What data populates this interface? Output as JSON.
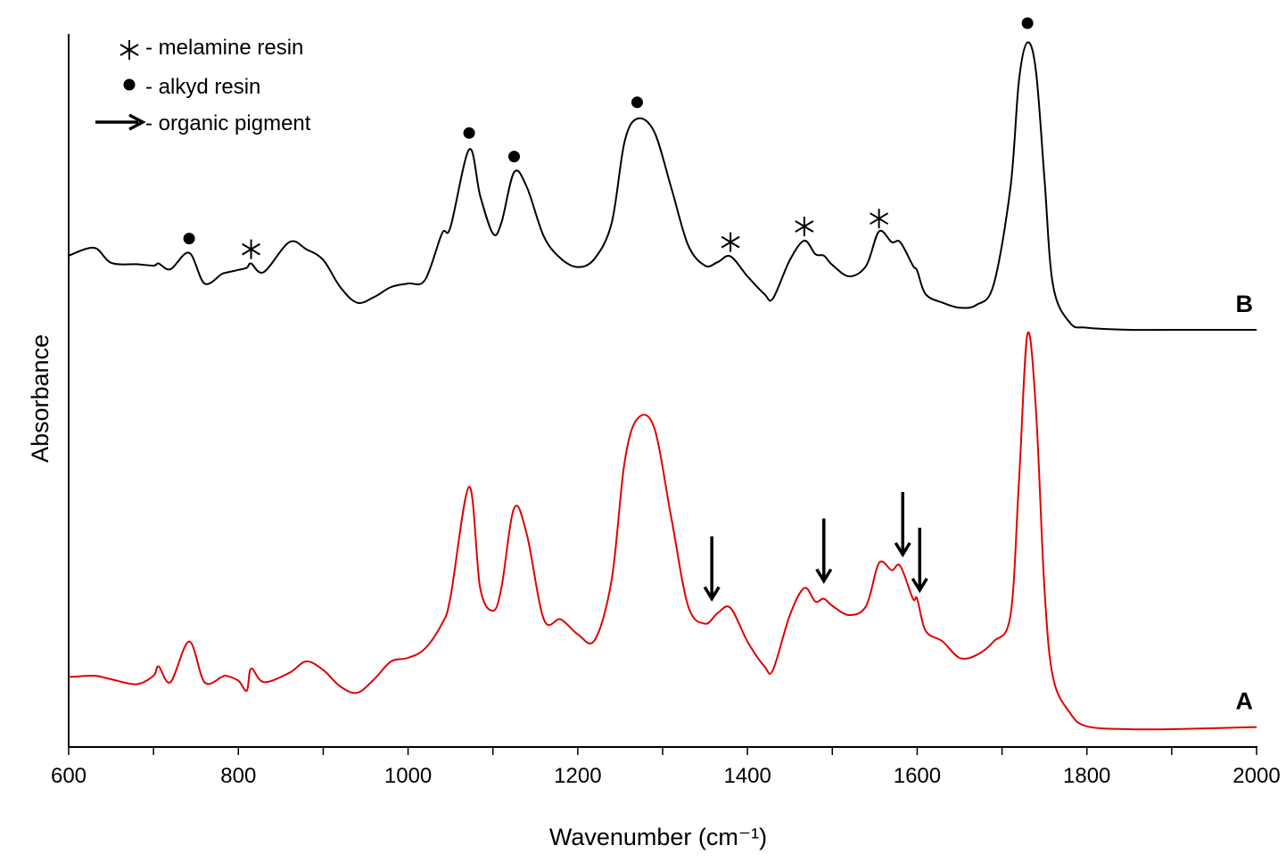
{
  "chart_data": {
    "type": "line",
    "x_label": "Wavenumber (cm⁻¹)",
    "y_label": "Absorbance",
    "x": [
      600,
      630,
      650,
      680,
      700,
      706,
      720,
      742,
      760,
      780,
      785,
      800,
      810,
      815,
      830,
      860,
      880,
      900,
      920,
      940,
      960,
      980,
      1000,
      1020,
      1040,
      1050,
      1072,
      1085,
      1100,
      1110,
      1125,
      1140,
      1160,
      1180,
      1200,
      1220,
      1240,
      1255,
      1270,
      1290,
      1310,
      1330,
      1350,
      1365,
      1380,
      1400,
      1420,
      1430,
      1450,
      1467,
      1480,
      1490,
      1500,
      1520,
      1540,
      1555,
      1570,
      1580,
      1595,
      1600,
      1610,
      1630,
      1650,
      1670,
      1690,
      1710,
      1720,
      1730,
      1740,
      1750,
      1760,
      1780,
      1800,
      1850,
      1900,
      2000
    ],
    "series": [
      {
        "name": "B",
        "color": "#000000",
        "values": [
          0.689,
          0.7,
          0.679,
          0.677,
          0.675,
          0.678,
          0.67,
          0.693,
          0.65,
          0.663,
          0.665,
          0.669,
          0.672,
          0.678,
          0.666,
          0.708,
          0.698,
          0.683,
          0.645,
          0.623,
          0.631,
          0.645,
          0.65,
          0.655,
          0.72,
          0.729,
          0.838,
          0.773,
          0.72,
          0.735,
          0.806,
          0.785,
          0.716,
          0.685,
          0.673,
          0.685,
          0.735,
          0.848,
          0.881,
          0.863,
          0.785,
          0.704,
          0.675,
          0.68,
          0.688,
          0.66,
          0.635,
          0.629,
          0.683,
          0.71,
          0.691,
          0.689,
          0.676,
          0.66,
          0.675,
          0.723,
          0.708,
          0.708,
          0.675,
          0.668,
          0.635,
          0.623,
          0.616,
          0.62,
          0.648,
          0.785,
          0.935,
          0.988,
          0.948,
          0.798,
          0.648,
          0.595,
          0.588,
          0.585,
          0.585,
          0.585
        ]
      },
      {
        "name": "A",
        "color": "#e00000",
        "values": [
          0.098,
          0.1,
          0.095,
          0.088,
          0.1,
          0.113,
          0.091,
          0.148,
          0.091,
          0.098,
          0.1,
          0.093,
          0.079,
          0.11,
          0.091,
          0.104,
          0.12,
          0.108,
          0.085,
          0.076,
          0.095,
          0.12,
          0.125,
          0.138,
          0.173,
          0.21,
          0.365,
          0.223,
          0.191,
          0.223,
          0.335,
          0.298,
          0.179,
          0.179,
          0.158,
          0.15,
          0.235,
          0.398,
          0.46,
          0.448,
          0.323,
          0.198,
          0.173,
          0.188,
          0.195,
          0.148,
          0.113,
          0.108,
          0.185,
          0.223,
          0.204,
          0.208,
          0.198,
          0.185,
          0.198,
          0.258,
          0.248,
          0.254,
          0.208,
          0.208,
          0.163,
          0.148,
          0.125,
          0.129,
          0.148,
          0.185,
          0.373,
          0.579,
          0.473,
          0.223,
          0.098,
          0.048,
          0.029,
          0.025,
          0.025,
          0.028
        ]
      }
    ],
    "xlim": [
      600,
      2000
    ],
    "xticks": [
      600,
      800,
      1000,
      1200,
      1400,
      1600,
      1800,
      2000
    ],
    "xminor_ticks": [
      700,
      900,
      1100,
      1300,
      1500,
      1700,
      1900
    ],
    "ylim": [
      0,
      1
    ],
    "markers": [
      {
        "label": "- melamine resin",
        "symbol": "asterisk",
        "x": [
          815,
          1380,
          1467,
          1555
        ],
        "y": [
          0.698,
          0.708,
          0.73,
          0.741
        ]
      },
      {
        "label": "- alkyd resin",
        "symbol": "circle",
        "x": [
          742,
          1072,
          1125,
          1270,
          1730
        ],
        "y": [
          0.713,
          0.861,
          0.828,
          0.904,
          1.015
        ]
      },
      {
        "label": "- organic pigment",
        "symbol": "arrow",
        "x": [
          1358,
          1490,
          1583,
          1603
        ],
        "y": [
          0.208,
          0.233,
          0.27,
          0.22
        ]
      }
    ]
  }
}
